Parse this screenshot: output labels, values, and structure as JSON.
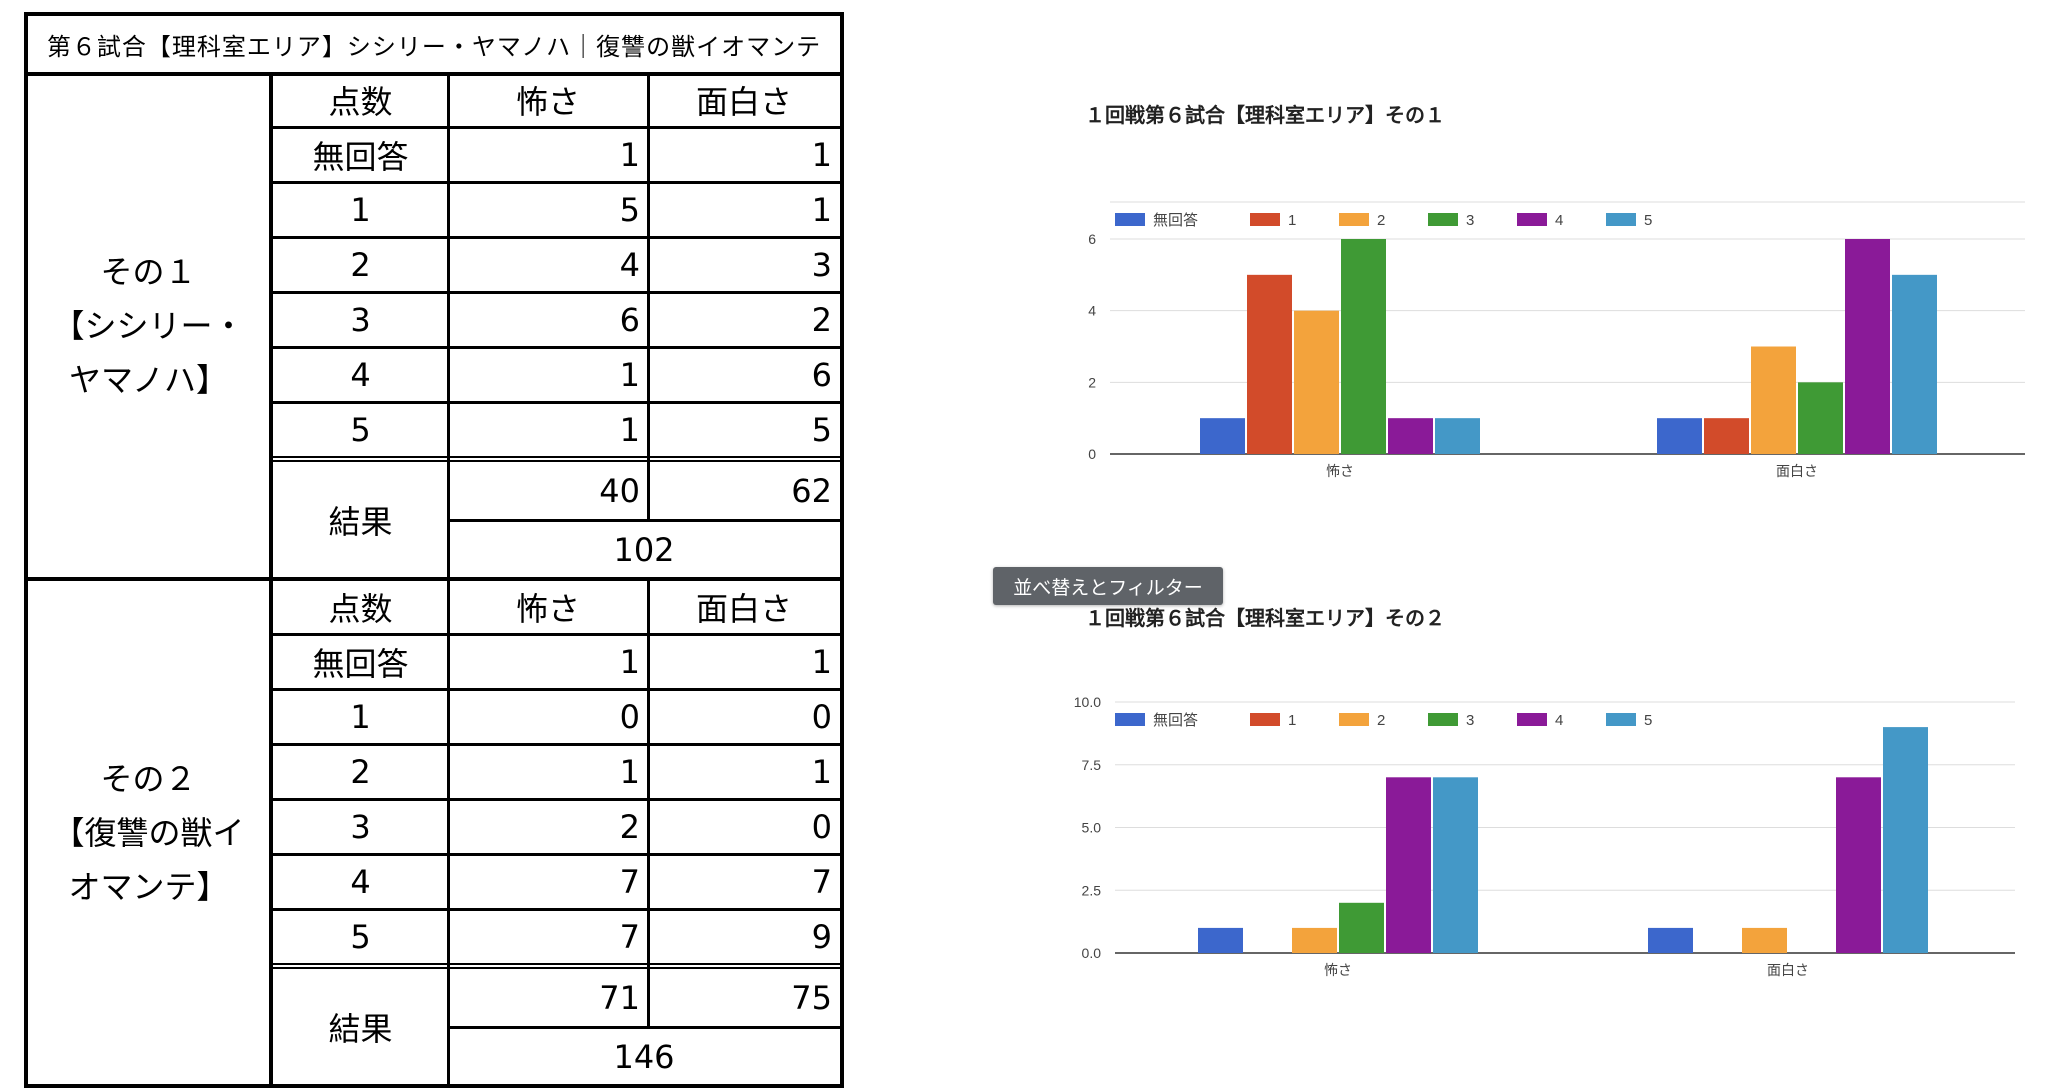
{
  "table": {
    "title": "第６試合【理科室エリア】シシリー・ヤマノハ｜復讐の獣イオマンテ",
    "sections": [
      {
        "label": "その１\n【シシリー・\nヤマノハ】",
        "headers": [
          "点数",
          "怖さ",
          "面白さ"
        ],
        "rows": [
          [
            "無回答",
            "1",
            "1"
          ],
          [
            "1",
            "5",
            "1"
          ],
          [
            "2",
            "4",
            "3"
          ],
          [
            "3",
            "6",
            "2"
          ],
          [
            "4",
            "1",
            "6"
          ],
          [
            "5",
            "1",
            "5"
          ]
        ],
        "result_label": "結果",
        "result_values": [
          "40",
          "62"
        ],
        "total": "102"
      },
      {
        "label": "その２\n【復讐の獣イ\nオマンテ】",
        "headers": [
          "点数",
          "怖さ",
          "面白さ"
        ],
        "rows": [
          [
            "無回答",
            "1",
            "1"
          ],
          [
            "1",
            "0",
            "0"
          ],
          [
            "2",
            "1",
            "1"
          ],
          [
            "3",
            "2",
            "0"
          ],
          [
            "4",
            "7",
            "7"
          ],
          [
            "5",
            "7",
            "9"
          ]
        ],
        "result_label": "結果",
        "result_values": [
          "71",
          "75"
        ],
        "total": "146"
      }
    ]
  },
  "tooltip": "並べ替えとフィルター",
  "chart_data": [
    {
      "type": "bar",
      "title": "１回戦第６試合【理科室エリア】その１",
      "categories": [
        "怖さ",
        "面白さ"
      ],
      "series": [
        {
          "name": "無回答",
          "values": [
            1,
            1
          ],
          "color": "#3c67cc"
        },
        {
          "name": "1",
          "values": [
            5,
            1
          ],
          "color": "#d24b2a"
        },
        {
          "name": "2",
          "values": [
            4,
            3
          ],
          "color": "#f3a33c"
        },
        {
          "name": "3",
          "values": [
            6,
            2
          ],
          "color": "#3f9a35"
        },
        {
          "name": "4",
          "values": [
            1,
            6
          ],
          "color": "#8a1a98"
        },
        {
          "name": "5",
          "values": [
            1,
            5
          ],
          "color": "#4498c7"
        }
      ],
      "ylim": [
        0,
        6
      ],
      "yticks": [
        0,
        2,
        4,
        6
      ],
      "ytick_labels": [
        "0",
        "2",
        "4",
        "6"
      ],
      "legend": "top-left",
      "grid": true
    },
    {
      "type": "bar",
      "title": "１回戦第６試合【理科室エリア】その２",
      "categories": [
        "怖さ",
        "面白さ"
      ],
      "series": [
        {
          "name": "無回答",
          "values": [
            1,
            1
          ],
          "color": "#3c67cc"
        },
        {
          "name": "1",
          "values": [
            0,
            0
          ],
          "color": "#d24b2a"
        },
        {
          "name": "2",
          "values": [
            1,
            1
          ],
          "color": "#f3a33c"
        },
        {
          "name": "3",
          "values": [
            2,
            0
          ],
          "color": "#3f9a35"
        },
        {
          "name": "4",
          "values": [
            7,
            7
          ],
          "color": "#8a1a98"
        },
        {
          "name": "5",
          "values": [
            7,
            9
          ],
          "color": "#4498c7"
        }
      ],
      "ylim": [
        0,
        10
      ],
      "yticks": [
        0,
        2.5,
        5,
        7.5,
        10
      ],
      "ytick_labels": [
        "0.0",
        "2.5",
        "5.0",
        "7.5",
        "10.0"
      ],
      "legend": "top-left",
      "grid": true
    }
  ]
}
